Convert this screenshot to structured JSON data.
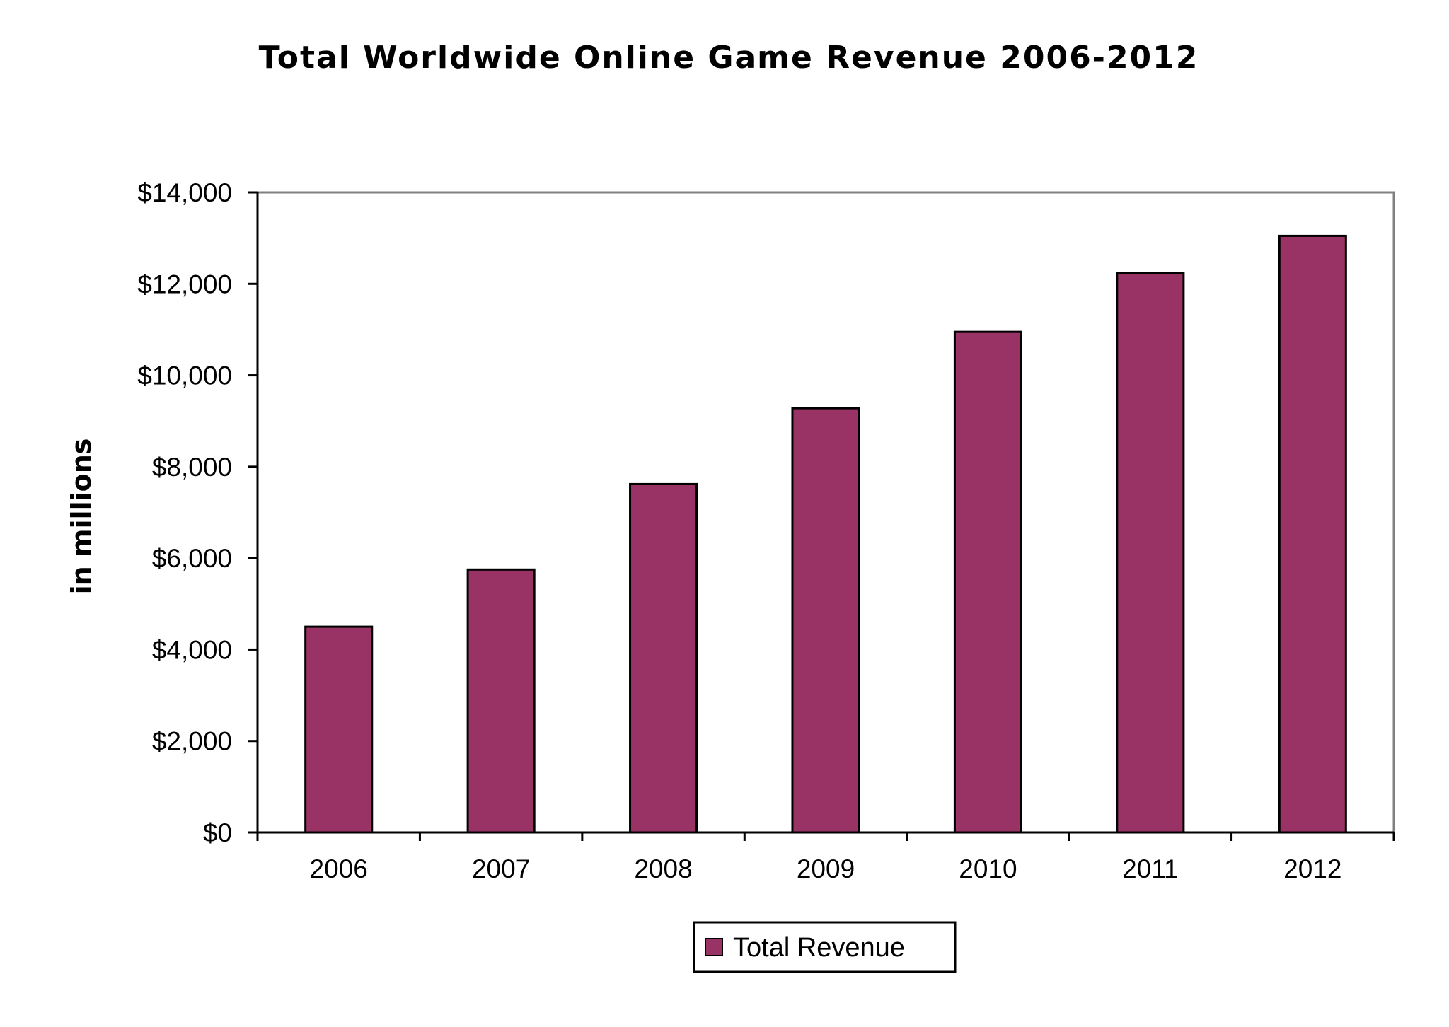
{
  "chart_data": {
    "type": "bar",
    "title": "Total Worldwide Online Game Revenue 2006-2012",
    "xlabel": "",
    "ylabel": "in millions",
    "categories": [
      "2006",
      "2007",
      "2008",
      "2009",
      "2010",
      "2011",
      "2012"
    ],
    "series": [
      {
        "name": "Total Revenue",
        "color": "#993366",
        "values": [
          4500,
          5750,
          7620,
          9280,
          10950,
          12230,
          13050
        ]
      }
    ],
    "ylim": [
      0,
      14000
    ],
    "y_ticks": [
      0,
      2000,
      4000,
      6000,
      8000,
      10000,
      12000,
      14000
    ],
    "y_tick_labels": [
      "$0",
      "$2,000",
      "$4,000",
      "$6,000",
      "$8,000",
      "$10,000",
      "$12,000",
      "$14,000"
    ],
    "grid": false,
    "legend_position": "bottom-center"
  }
}
